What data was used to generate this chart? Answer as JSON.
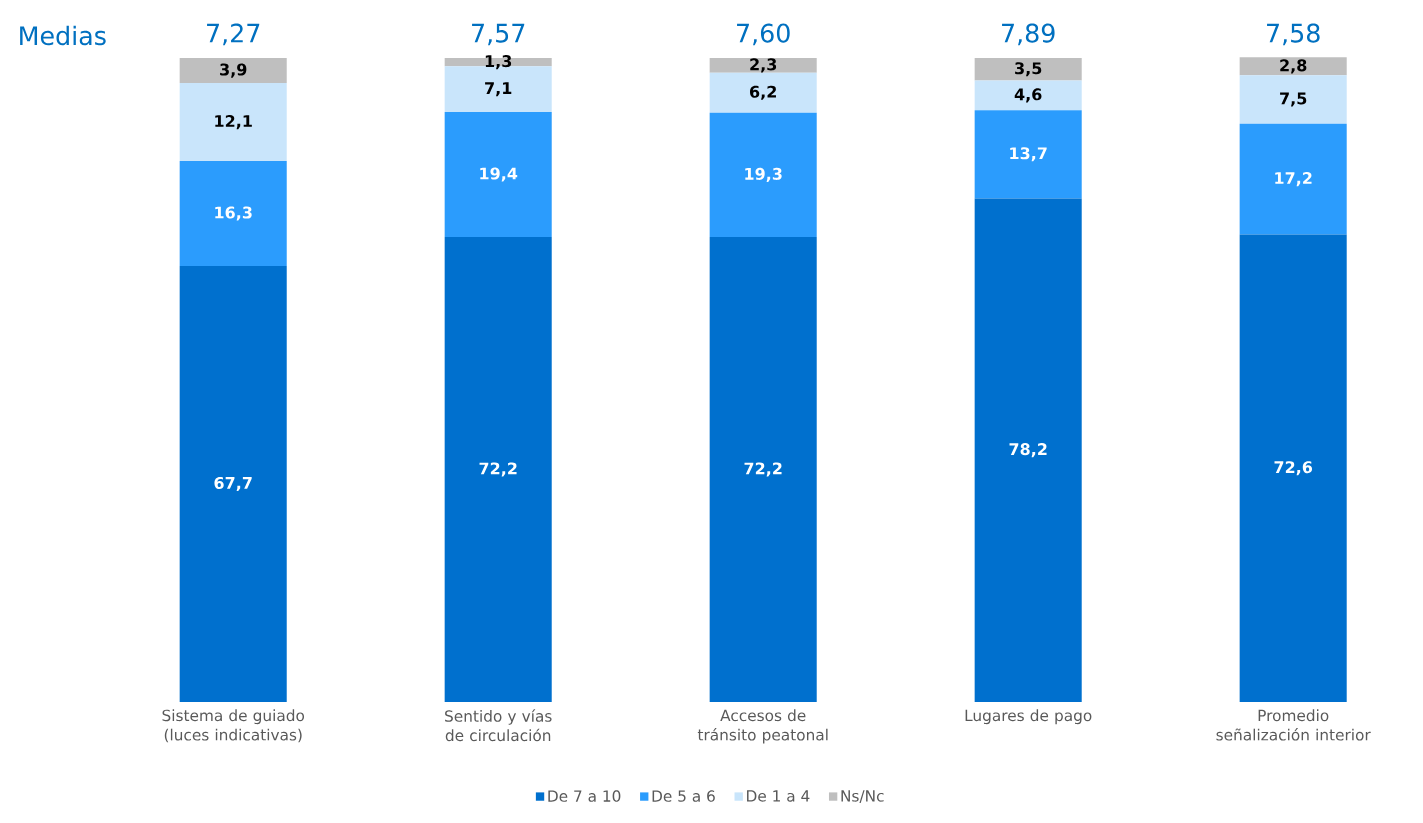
{
  "chart_data": {
    "type": "bar",
    "stacked": true,
    "legend": "bottom",
    "ylim": [
      0,
      100
    ],
    "categories": [
      "Sistema de guiado (luces indicativas)",
      "Sentido y vías de circulación",
      "Accesos de tránsito peatonal",
      "Lugares de pago",
      "Promedio señalización interior"
    ],
    "series": [
      {
        "name": "De 7 a 10",
        "color": "#0070ce",
        "values": [
          67.7,
          72.2,
          72.2,
          78.2,
          72.6
        ],
        "value_labels": [
          "67,7",
          "72,2",
          "72,2",
          "78,2",
          "72,6"
        ]
      },
      {
        "name": "De 5 a 6",
        "color": "#2b9cfd",
        "values": [
          16.3,
          19.4,
          19.3,
          13.7,
          17.2
        ],
        "value_labels": [
          "16,3",
          "19,4",
          "19,3",
          "13,7",
          "17,2"
        ]
      },
      {
        "name": "De 1 a 4",
        "color": "#c9e5fb",
        "values": [
          12.1,
          7.1,
          6.2,
          4.6,
          7.5
        ],
        "value_labels": [
          "12,1",
          "7,1",
          "6,2",
          "4,6",
          "7,5"
        ]
      },
      {
        "name": "Ns/Nc",
        "color": "#bfbfbf",
        "values": [
          3.9,
          1.3,
          2.3,
          3.5,
          2.8
        ],
        "value_labels": [
          "3,9",
          "1,3",
          "2,3",
          "3,5",
          "2,8"
        ]
      }
    ],
    "annotations": [
      "Medias",
      "7,27",
      "7,57",
      "7,60",
      "7,89",
      "7,58"
    ]
  }
}
